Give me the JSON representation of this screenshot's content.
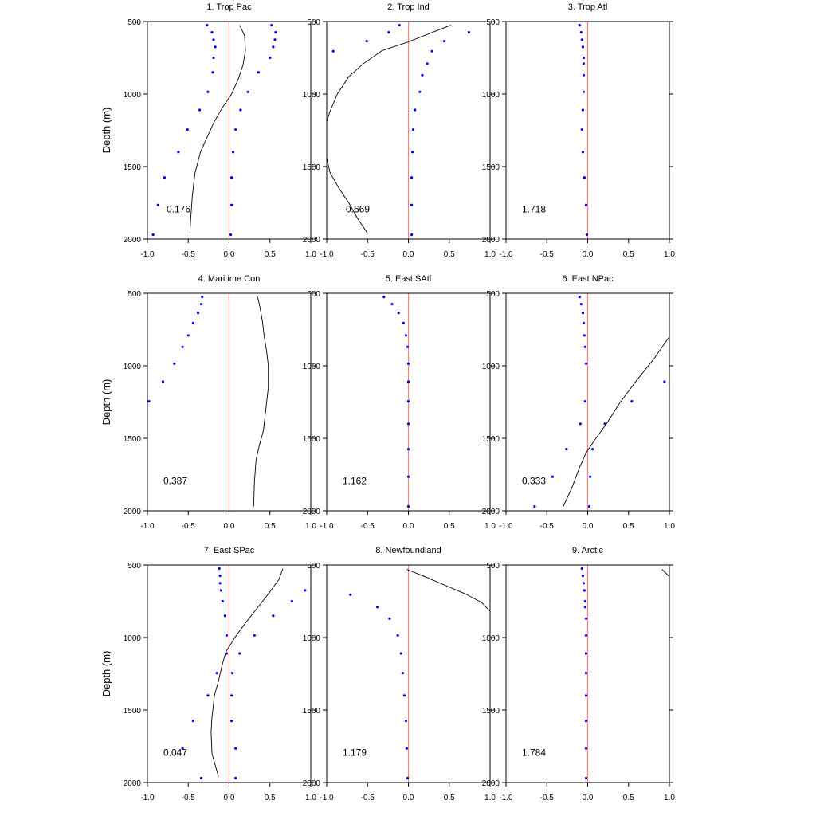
{
  "figure": {
    "ylabel": "Depth (m)"
  },
  "colors": {
    "dots": "#0000ff",
    "zero_line": "#ff8080",
    "curve": "#000000",
    "axes": "#000000"
  },
  "chart_data": [
    {
      "type": "scatter",
      "title": "1. Trop Pac",
      "value_label": "-0.176",
      "ylabel": "Depth (m)",
      "xlim": [
        -1.0,
        1.0
      ],
      "ylim": [
        2000,
        500
      ],
      "y_reversed": true,
      "xticks": [
        "-1.0",
        "-0.5",
        "0.0",
        "0.5",
        "1.0"
      ],
      "yticks": [
        "500",
        "1000",
        "1500",
        "2000"
      ],
      "dots": [
        [
          -0.27,
          525
        ],
        [
          0.52,
          525
        ],
        [
          -0.21,
          575
        ],
        [
          0.57,
          575
        ],
        [
          -0.19,
          625
        ],
        [
          0.56,
          625
        ],
        [
          -0.17,
          675
        ],
        [
          0.54,
          675
        ],
        [
          -0.19,
          750
        ],
        [
          0.5,
          750
        ],
        [
          -0.2,
          850
        ],
        [
          0.36,
          850
        ],
        [
          -0.26,
          985
        ],
        [
          0.23,
          985
        ],
        [
          -0.36,
          1110
        ],
        [
          0.14,
          1110
        ],
        [
          -0.51,
          1245
        ],
        [
          0.08,
          1245
        ],
        [
          -0.62,
          1400
        ],
        [
          0.05,
          1400
        ],
        [
          -0.79,
          1575
        ],
        [
          0.03,
          1575
        ],
        [
          -0.87,
          1765
        ],
        [
          0.03,
          1765
        ],
        [
          -0.93,
          1970
        ],
        [
          0.02,
          1970
        ]
      ],
      "curve": [
        [
          0.13,
          525
        ],
        [
          0.19,
          600
        ],
        [
          0.2,
          700
        ],
        [
          0.17,
          800
        ],
        [
          0.11,
          900
        ],
        [
          0.03,
          1000
        ],
        [
          -0.09,
          1100
        ],
        [
          -0.19,
          1200
        ],
        [
          -0.27,
          1300
        ],
        [
          -0.35,
          1400
        ],
        [
          -0.42,
          1550
        ],
        [
          -0.45,
          1700
        ],
        [
          -0.47,
          1860
        ],
        [
          -0.48,
          1960
        ]
      ]
    },
    {
      "type": "scatter",
      "title": "2. Trop Ind",
      "value_label": "-0.669",
      "ylabel": "",
      "xlim": [
        -1.0,
        1.0
      ],
      "ylim": [
        2000,
        500
      ],
      "y_reversed": true,
      "xticks": [
        "-1.0",
        "-0.5",
        "0.0",
        "0.5",
        "1.0"
      ],
      "yticks": [
        "500",
        "1000",
        "1500",
        "2000"
      ],
      "dots": [
        [
          -0.11,
          525
        ],
        [
          -0.24,
          575
        ],
        [
          0.74,
          575
        ],
        [
          -0.51,
          635
        ],
        [
          0.44,
          635
        ],
        [
          -0.92,
          705
        ],
        [
          0.29,
          705
        ],
        [
          0.23,
          790
        ],
        [
          0.17,
          870
        ],
        [
          0.14,
          985
        ],
        [
          0.08,
          1110
        ],
        [
          0.06,
          1245
        ],
        [
          0.05,
          1400
        ],
        [
          0.04,
          1575
        ],
        [
          0.04,
          1765
        ],
        [
          0.04,
          1970
        ]
      ],
      "curve_segments": [
        [
          [
            0.52,
            525
          ],
          [
            0.27,
            580
          ],
          [
            0.0,
            640
          ],
          [
            -0.32,
            700
          ],
          [
            -0.55,
            790
          ],
          [
            -0.73,
            880
          ],
          [
            -0.87,
            1000
          ],
          [
            -0.96,
            1120
          ],
          [
            -1.0,
            1190
          ]
        ],
        [
          [
            -1.0,
            1440
          ],
          [
            -0.96,
            1540
          ],
          [
            -0.85,
            1650
          ],
          [
            -0.73,
            1750
          ],
          [
            -0.62,
            1860
          ],
          [
            -0.5,
            1960
          ]
        ]
      ]
    },
    {
      "type": "scatter",
      "title": "3. Trop Atl",
      "value_label": "1.718",
      "ylabel": "",
      "xlim": [
        -1.0,
        1.0
      ],
      "ylim": [
        2000,
        500
      ],
      "y_reversed": true,
      "xticks": [
        "-1.0",
        "-0.5",
        "0.0",
        "0.5",
        "1.0"
      ],
      "yticks": [
        "500",
        "1000",
        "1500",
        "2000"
      ],
      "dots": [
        [
          -0.1,
          525
        ],
        [
          -0.08,
          575
        ],
        [
          -0.07,
          625
        ],
        [
          -0.06,
          675
        ],
        [
          -0.05,
          750
        ],
        [
          -0.05,
          790
        ],
        [
          -0.05,
          870
        ],
        [
          -0.05,
          985
        ],
        [
          -0.06,
          1110
        ],
        [
          -0.07,
          1245
        ],
        [
          -0.06,
          1400
        ],
        [
          -0.04,
          1575
        ],
        [
          -0.02,
          1765
        ],
        [
          -0.01,
          1970
        ]
      ]
    },
    {
      "type": "scatter",
      "title": "4. Maritime Con",
      "value_label": "0.387",
      "ylabel": "Depth (m)",
      "xlim": [
        -1.0,
        1.0
      ],
      "ylim": [
        2000,
        500
      ],
      "y_reversed": true,
      "xticks": [
        "-1.0",
        "-0.5",
        "0.0",
        "0.5",
        "1.0"
      ],
      "yticks": [
        "500",
        "1000",
        "1500",
        "2000"
      ],
      "dots": [
        [
          -0.33,
          525
        ],
        [
          -0.34,
          575
        ],
        [
          -0.38,
          635
        ],
        [
          -0.44,
          705
        ],
        [
          -0.5,
          790
        ],
        [
          -0.57,
          870
        ],
        [
          -0.67,
          985
        ],
        [
          -0.81,
          1110
        ],
        [
          -0.98,
          1245
        ]
      ],
      "curve": [
        [
          0.35,
          525
        ],
        [
          0.38,
          600
        ],
        [
          0.41,
          700
        ],
        [
          0.43,
          800
        ],
        [
          0.46,
          900
        ],
        [
          0.48,
          1000
        ],
        [
          0.48,
          1150
        ],
        [
          0.45,
          1300
        ],
        [
          0.42,
          1450
        ],
        [
          0.37,
          1550
        ],
        [
          0.33,
          1650
        ],
        [
          0.31,
          1800
        ],
        [
          0.3,
          1970
        ]
      ]
    },
    {
      "type": "scatter",
      "title": "5. East SAtl",
      "value_label": "1.162",
      "ylabel": "",
      "xlim": [
        -1.0,
        1.0
      ],
      "ylim": [
        2000,
        500
      ],
      "y_reversed": true,
      "xticks": [
        "-1.0",
        "-0.5",
        "0.0",
        "0.5",
        "1.0"
      ],
      "yticks": [
        "500",
        "1000",
        "1500",
        "2000"
      ],
      "dots": [
        [
          -0.3,
          525
        ],
        [
          -0.2,
          575
        ],
        [
          -0.12,
          635
        ],
        [
          -0.06,
          705
        ],
        [
          -0.03,
          790
        ],
        [
          -0.01,
          870
        ],
        [
          0.0,
          985
        ],
        [
          0.0,
          1110
        ],
        [
          0.0,
          1245
        ],
        [
          0.0,
          1400
        ],
        [
          0.0,
          1575
        ],
        [
          0.0,
          1765
        ],
        [
          0.0,
          1970
        ]
      ]
    },
    {
      "type": "scatter",
      "title": "6. East NPac",
      "value_label": "0.333",
      "ylabel": "",
      "xlim": [
        -1.0,
        1.0
      ],
      "ylim": [
        2000,
        500
      ],
      "y_reversed": true,
      "xticks": [
        "-1.0",
        "-0.5",
        "0.0",
        "0.5",
        "1.0"
      ],
      "yticks": [
        "500",
        "1000",
        "1500",
        "2000"
      ],
      "dots": [
        [
          -0.1,
          525
        ],
        [
          -0.08,
          575
        ],
        [
          -0.06,
          635
        ],
        [
          -0.05,
          705
        ],
        [
          -0.04,
          790
        ],
        [
          -0.03,
          870
        ],
        [
          -0.02,
          985
        ],
        [
          0.94,
          1110
        ],
        [
          -0.03,
          1245
        ],
        [
          0.54,
          1245
        ],
        [
          -0.09,
          1400
        ],
        [
          0.21,
          1400
        ],
        [
          -0.26,
          1575
        ],
        [
          0.06,
          1575
        ],
        [
          -0.43,
          1765
        ],
        [
          0.03,
          1765
        ],
        [
          -0.65,
          1970
        ],
        [
          0.02,
          1970
        ]
      ],
      "curve": [
        [
          1.0,
          800
        ],
        [
          0.8,
          960
        ],
        [
          0.6,
          1100
        ],
        [
          0.4,
          1250
        ],
        [
          0.23,
          1400
        ],
        [
          0.1,
          1500
        ],
        [
          -0.02,
          1600
        ],
        [
          -0.1,
          1700
        ],
        [
          -0.2,
          1850
        ],
        [
          -0.3,
          1970
        ]
      ]
    },
    {
      "type": "scatter",
      "title": "7. East SPac",
      "value_label": "0.047",
      "ylabel": "Depth (m)",
      "xlim": [
        -1.0,
        1.0
      ],
      "ylim": [
        2000,
        500
      ],
      "y_reversed": true,
      "xticks": [
        "-1.0",
        "-0.5",
        "0.0",
        "0.5",
        "1.0"
      ],
      "yticks": [
        "500",
        "1000",
        "1500",
        "2000"
      ],
      "dots": [
        [
          -0.12,
          525
        ],
        [
          -0.11,
          575
        ],
        [
          -0.11,
          625
        ],
        [
          -0.1,
          675
        ],
        [
          0.93,
          675
        ],
        [
          -0.08,
          750
        ],
        [
          0.77,
          750
        ],
        [
          -0.05,
          850
        ],
        [
          0.54,
          850
        ],
        [
          -0.03,
          985
        ],
        [
          0.31,
          985
        ],
        [
          -0.03,
          1110
        ],
        [
          0.13,
          1110
        ],
        [
          -0.15,
          1245
        ],
        [
          0.04,
          1245
        ],
        [
          -0.26,
          1400
        ],
        [
          0.03,
          1400
        ],
        [
          -0.44,
          1575
        ],
        [
          0.03,
          1575
        ],
        [
          -0.57,
          1765
        ],
        [
          0.08,
          1765
        ],
        [
          -0.34,
          1970
        ],
        [
          0.08,
          1970
        ]
      ],
      "curve": [
        [
          0.66,
          525
        ],
        [
          0.61,
          600
        ],
        [
          0.48,
          700
        ],
        [
          0.34,
          800
        ],
        [
          0.2,
          900
        ],
        [
          0.07,
          1000
        ],
        [
          -0.04,
          1100
        ],
        [
          -0.09,
          1200
        ],
        [
          -0.13,
          1300
        ],
        [
          -0.18,
          1400
        ],
        [
          -0.21,
          1550
        ],
        [
          -0.22,
          1650
        ],
        [
          -0.21,
          1800
        ],
        [
          -0.13,
          1960
        ]
      ]
    },
    {
      "type": "scatter",
      "title": "8. Newfoundland",
      "value_label": "1.179",
      "ylabel": "",
      "xlim": [
        -1.0,
        1.0
      ],
      "ylim": [
        2000,
        500
      ],
      "y_reversed": true,
      "xticks": [
        "-1.0",
        "-0.5",
        "0.0",
        "0.5",
        "1.0"
      ],
      "yticks": [
        "500",
        "1000",
        "1500",
        "2000"
      ],
      "dots": [
        [
          -0.71,
          705
        ],
        [
          -0.38,
          790
        ],
        [
          -0.23,
          870
        ],
        [
          -0.13,
          985
        ],
        [
          -0.09,
          1110
        ],
        [
          -0.07,
          1245
        ],
        [
          -0.05,
          1400
        ],
        [
          -0.03,
          1575
        ],
        [
          -0.02,
          1765
        ],
        [
          -0.01,
          1970
        ]
      ],
      "curve": [
        [
          -0.02,
          530
        ],
        [
          0.2,
          580
        ],
        [
          0.45,
          640
        ],
        [
          0.7,
          700
        ],
        [
          0.9,
          760
        ],
        [
          1.0,
          820
        ]
      ]
    },
    {
      "type": "scatter",
      "title": "9. Arctic",
      "value_label": "1.784",
      "ylabel": "",
      "xlim": [
        -1.0,
        1.0
      ],
      "ylim": [
        2000,
        500
      ],
      "y_reversed": true,
      "xticks": [
        "-1.0",
        "-0.5",
        "0.0",
        "0.5",
        "1.0"
      ],
      "yticks": [
        "500",
        "1000",
        "1500",
        "2000"
      ],
      "dots": [
        [
          -0.07,
          525
        ],
        [
          -0.06,
          575
        ],
        [
          -0.05,
          625
        ],
        [
          -0.04,
          675
        ],
        [
          -0.03,
          750
        ],
        [
          -0.03,
          790
        ],
        [
          -0.02,
          870
        ],
        [
          -0.02,
          985
        ],
        [
          -0.02,
          1110
        ],
        [
          -0.02,
          1245
        ],
        [
          -0.02,
          1400
        ],
        [
          -0.02,
          1575
        ],
        [
          -0.02,
          1765
        ],
        [
          -0.02,
          1970
        ]
      ],
      "curve": [
        [
          0.91,
          530
        ],
        [
          1.0,
          580
        ]
      ]
    }
  ]
}
